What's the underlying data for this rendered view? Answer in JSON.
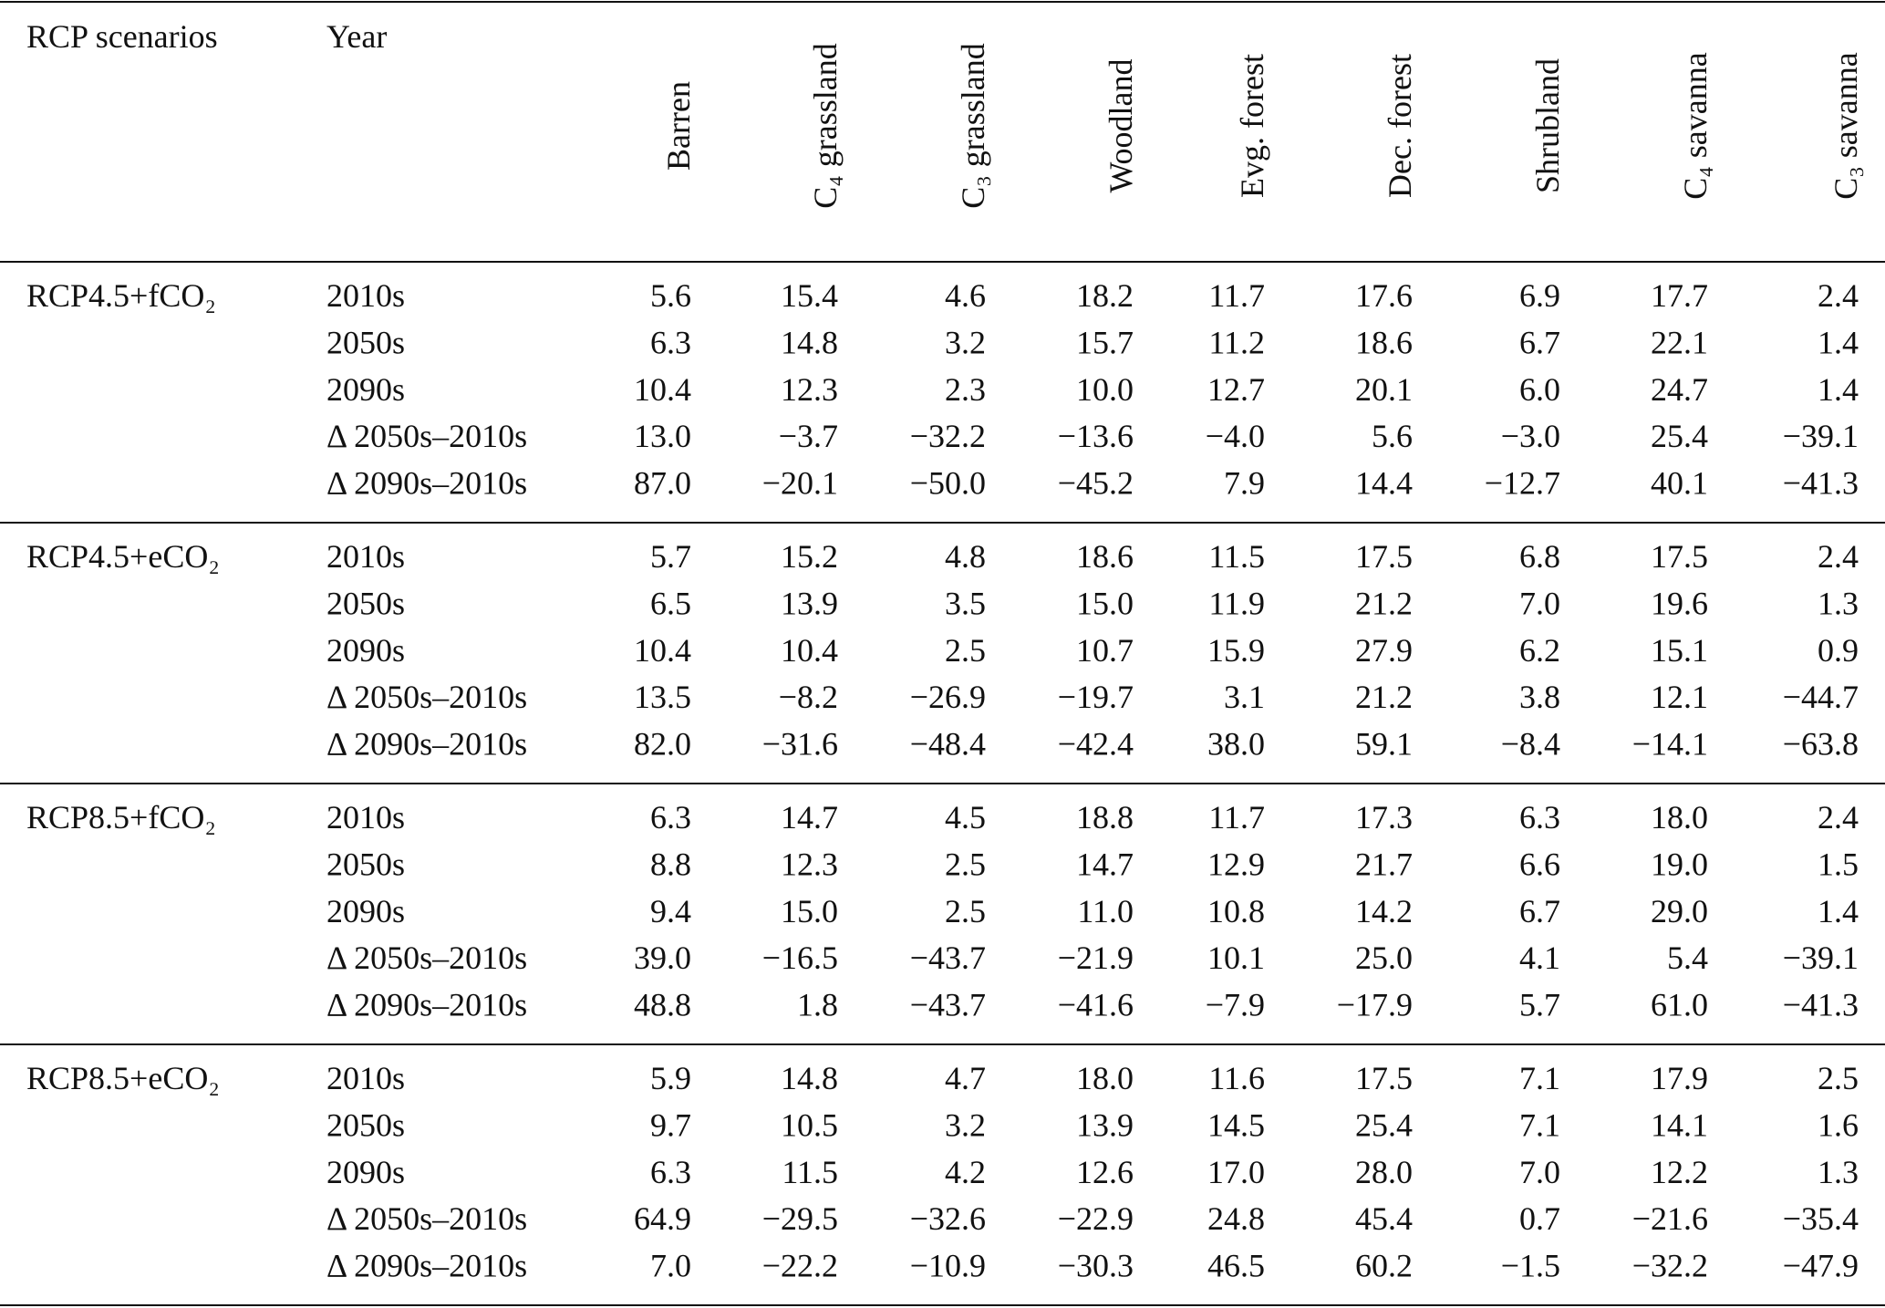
{
  "table": {
    "header": {
      "scenario": "RCP scenarios",
      "year": "Year",
      "columns": [
        "Barren",
        "C₄ grassland",
        "C₃ grassland",
        "Woodland",
        "Evg. forest",
        "Dec. forest",
        "Shrubland",
        "C₄ savanna",
        "C₃ savanna"
      ]
    },
    "groups": [
      {
        "scenario": "RCP4.5+fCO₂",
        "rows": [
          {
            "year": "2010s",
            "values": [
              "5.6",
              "15.4",
              "4.6",
              "18.2",
              "11.7",
              "17.6",
              "6.9",
              "17.7",
              "2.4"
            ]
          },
          {
            "year": "2050s",
            "values": [
              "6.3",
              "14.8",
              "3.2",
              "15.7",
              "11.2",
              "18.6",
              "6.7",
              "22.1",
              "1.4"
            ]
          },
          {
            "year": "2090s",
            "values": [
              "10.4",
              "12.3",
              "2.3",
              "10.0",
              "12.7",
              "20.1",
              "6.0",
              "24.7",
              "1.4"
            ]
          },
          {
            "year": "Δ 2050s–2010s",
            "values": [
              "13.0",
              "−3.7",
              "−32.2",
              "−13.6",
              "−4.0",
              "5.6",
              "−3.0",
              "25.4",
              "−39.1"
            ]
          },
          {
            "year": "Δ 2090s–2010s",
            "values": [
              "87.0",
              "−20.1",
              "−50.0",
              "−45.2",
              "7.9",
              "14.4",
              "−12.7",
              "40.1",
              "−41.3"
            ]
          }
        ]
      },
      {
        "scenario": "RCP4.5+eCO₂",
        "rows": [
          {
            "year": "2010s",
            "values": [
              "5.7",
              "15.2",
              "4.8",
              "18.6",
              "11.5",
              "17.5",
              "6.8",
              "17.5",
              "2.4"
            ]
          },
          {
            "year": "2050s",
            "values": [
              "6.5",
              "13.9",
              "3.5",
              "15.0",
              "11.9",
              "21.2",
              "7.0",
              "19.6",
              "1.3"
            ]
          },
          {
            "year": "2090s",
            "values": [
              "10.4",
              "10.4",
              "2.5",
              "10.7",
              "15.9",
              "27.9",
              "6.2",
              "15.1",
              "0.9"
            ]
          },
          {
            "year": "Δ 2050s–2010s",
            "values": [
              "13.5",
              "−8.2",
              "−26.9",
              "−19.7",
              "3.1",
              "21.2",
              "3.8",
              "12.1",
              "−44.7"
            ]
          },
          {
            "year": "Δ 2090s–2010s",
            "values": [
              "82.0",
              "−31.6",
              "−48.4",
              "−42.4",
              "38.0",
              "59.1",
              "−8.4",
              "−14.1",
              "−63.8"
            ]
          }
        ]
      },
      {
        "scenario": "RCP8.5+fCO₂",
        "rows": [
          {
            "year": "2010s",
            "values": [
              "6.3",
              "14.7",
              "4.5",
              "18.8",
              "11.7",
              "17.3",
              "6.3",
              "18.0",
              "2.4"
            ]
          },
          {
            "year": "2050s",
            "values": [
              "8.8",
              "12.3",
              "2.5",
              "14.7",
              "12.9",
              "21.7",
              "6.6",
              "19.0",
              "1.5"
            ]
          },
          {
            "year": "2090s",
            "values": [
              "9.4",
              "15.0",
              "2.5",
              "11.0",
              "10.8",
              "14.2",
              "6.7",
              "29.0",
              "1.4"
            ]
          },
          {
            "year": "Δ 2050s–2010s",
            "values": [
              "39.0",
              "−16.5",
              "−43.7",
              "−21.9",
              "10.1",
              "25.0",
              "4.1",
              "5.4",
              "−39.1"
            ]
          },
          {
            "year": "Δ 2090s–2010s",
            "values": [
              "48.8",
              "1.8",
              "−43.7",
              "−41.6",
              "−7.9",
              "−17.9",
              "5.7",
              "61.0",
              "−41.3"
            ]
          }
        ]
      },
      {
        "scenario": "RCP8.5+eCO₂",
        "rows": [
          {
            "year": "2010s",
            "values": [
              "5.9",
              "14.8",
              "4.7",
              "18.0",
              "11.6",
              "17.5",
              "7.1",
              "17.9",
              "2.5"
            ]
          },
          {
            "year": "2050s",
            "values": [
              "9.7",
              "10.5",
              "3.2",
              "13.9",
              "14.5",
              "25.4",
              "7.1",
              "14.1",
              "1.6"
            ]
          },
          {
            "year": "2090s",
            "values": [
              "6.3",
              "11.5",
              "4.2",
              "12.6",
              "17.0",
              "28.0",
              "7.0",
              "12.2",
              "1.3"
            ]
          },
          {
            "year": "Δ 2050s–2010s",
            "values": [
              "64.9",
              "−29.5",
              "−32.6",
              "−22.9",
              "24.8",
              "45.4",
              "0.7",
              "−21.6",
              "−35.4"
            ]
          },
          {
            "year": "Δ 2090s–2010s",
            "values": [
              "7.0",
              "−22.2",
              "−10.9",
              "−30.3",
              "46.5",
              "60.2",
              "−1.5",
              "−32.2",
              "−47.9"
            ]
          }
        ]
      }
    ]
  }
}
